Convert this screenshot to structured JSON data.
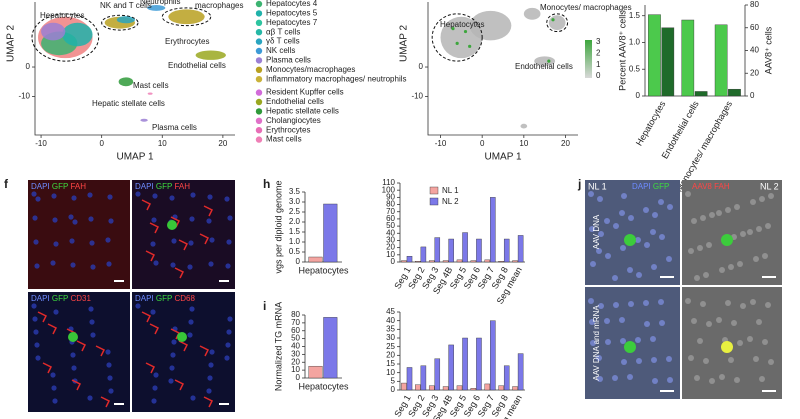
{
  "chart_data": [
    {
      "type": "scatter",
      "xlabel": "UMAP 1",
      "ylabel": "UMAP 2",
      "xlim": [
        -11,
        22
      ],
      "ylim": [
        -23,
        22
      ],
      "xticks": [
        -10,
        0,
        10,
        20
      ],
      "yticks": [
        -10,
        0
      ],
      "annotations": [
        "Hepatocytes",
        "NK and T cells",
        "Neutrophils",
        "macrophages",
        "Erythrocytes",
        "Endothelial cells",
        "Hepatic stellate cells",
        "Mast cells",
        "Plasma cells"
      ],
      "legend_entries": [
        {
          "name": "Hepatocytes 4",
          "color": "#3cb371"
        },
        {
          "name": "Hepatocytes 5",
          "color": "#20b2aa"
        },
        {
          "name": "Hepatocytes 7",
          "color": "#2ec4a0"
        },
        {
          "name": "αβ T cells",
          "color": "#26b8a6"
        },
        {
          "name": "γδ T cells",
          "color": "#2aa5c0"
        },
        {
          "name": "NK cells",
          "color": "#3c9ad6"
        },
        {
          "name": "Plasma cells",
          "color": "#9b7fd4"
        },
        {
          "name": "Monocytes/macrophages",
          "color": "#b8a020"
        },
        {
          "name": "Inflammatory macrophages/ neutrophils",
          "color": "#c9b23a"
        },
        {
          "name": "Resident Kupffer cells",
          "color": "#d26bd9"
        },
        {
          "name": "Endothelial cells",
          "color": "#9aa820"
        },
        {
          "name": "Hepatic stellate cells",
          "color": "#2f9a3a"
        },
        {
          "name": "Cholangiocytes",
          "color": "#e070c8"
        },
        {
          "name": "Erythrocytes",
          "color": "#e86db6"
        },
        {
          "name": "Mast cells",
          "color": "#ef7fb6"
        }
      ]
    },
    {
      "type": "scatter",
      "xlabel": "UMAP 1",
      "ylabel": "UMAP 2",
      "xlim": [
        -13,
        23
      ],
      "ylim": [
        -23,
        22
      ],
      "xticks": [
        -10,
        0,
        10,
        20
      ],
      "yticks": [
        -10,
        0
      ],
      "annotations": [
        "Hepatocytes",
        "Monocytes/ macrophages",
        "Endothelial cells"
      ],
      "colorbar_ticks": [
        0,
        1,
        2,
        3
      ],
      "color": "#b5b5b5"
    },
    {
      "type": "bar",
      "categories": [
        "Hepatocytes",
        "Endothelial cells",
        "Monocytes/ macrophages"
      ],
      "ylabel": "Percent AAV8⁺ cells",
      "y2label": "AAV8⁺ cells",
      "ylim": [
        0,
        1.7
      ],
      "yticks": [
        0,
        0.5,
        {
          "value": 1,
          "label": "1.0"
        },
        1.5
      ],
      "y2lim": [
        0,
        80
      ],
      "y2ticks": [
        0,
        20,
        40,
        60,
        80
      ],
      "series": [
        {
          "color": "#4cc94c",
          "values": [
            1.52,
            1.42,
            1.33
          ]
        },
        {
          "color": "#1f6b2a",
          "axis": "y2",
          "values": [
            60,
            4,
            6
          ]
        }
      ]
    },
    {
      "type": "bar",
      "categories": [
        "Hepatocytes"
      ],
      "ylabel": "vgs per diploid genome",
      "ylim": [
        0,
        3.5
      ],
      "yticks": [
        0,
        0.5,
        {
          "value": 1,
          "label": "1.0"
        },
        1.5,
        {
          "value": 2,
          "label": "2.0"
        },
        2.5,
        {
          "value": 3,
          "label": "3.0"
        },
        3.5
      ],
      "series": [
        {
          "color": "#f4a4a0",
          "values": [
            0.25
          ]
        },
        {
          "color": "#7b78e8",
          "values": [
            2.9
          ]
        }
      ]
    },
    {
      "type": "bar",
      "categories": [
        "Seg 1",
        "Seg 2",
        "Seg 3",
        "Seg 4B",
        "Seg 5",
        "Seg 6",
        "Seg 7",
        "Seg 8",
        "Seg mean"
      ],
      "ylim": [
        0,
        110
      ],
      "yticks": [
        0,
        10,
        20,
        30,
        40,
        50,
        60,
        70,
        80,
        90,
        100,
        110
      ],
      "series": [
        {
          "name": "NL 1",
          "color": "#f4a4a0",
          "values": [
            2,
            1,
            2,
            2,
            3,
            2,
            3,
            1,
            2
          ]
        },
        {
          "name": "NL 2",
          "color": "#7b78e8",
          "values": [
            8,
            21,
            34,
            32,
            41,
            32,
            90,
            32,
            37
          ]
        }
      ]
    },
    {
      "type": "bar",
      "categories": [
        "Hepatocytes"
      ],
      "ylabel": "Normalized TG mRNA",
      "ylim": [
        0,
        80
      ],
      "yticks": [
        0,
        10,
        20,
        30,
        40,
        50,
        60,
        70,
        80
      ],
      "series": [
        {
          "color": "#f4a4a0",
          "values": [
            15
          ]
        },
        {
          "color": "#7b78e8",
          "values": [
            77
          ]
        }
      ]
    },
    {
      "type": "bar",
      "categories": [
        "Seg 1",
        "Seg 2",
        "Seg 3",
        "Seg 4B",
        "Seg 5",
        "Seg 6",
        "Seg 7",
        "Seg 8",
        "Seg mean"
      ],
      "ylim": [
        0,
        45
      ],
      "yticks": [
        0,
        5,
        10,
        15,
        20,
        25,
        30,
        35,
        40,
        45
      ],
      "series": [
        {
          "color": "#f4a4a0",
          "values": [
            4,
            3,
            2.5,
            2,
            2.5,
            1,
            3.5,
            2.5,
            2
          ]
        },
        {
          "color": "#7b78e8",
          "values": [
            13,
            14,
            18,
            26,
            30,
            30,
            40,
            14,
            21
          ]
        }
      ]
    }
  ],
  "figure": {
    "panel_labels": [
      "f",
      "h",
      "i",
      "j"
    ],
    "f": {
      "labels": [
        [
          "DAPI",
          "GFP",
          "FAH"
        ],
        [
          "DAPI",
          "GFP",
          "FAH"
        ],
        [
          "DAPI",
          "GFP",
          "CD31"
        ],
        [
          "DAPI",
          "GFP",
          "CD68"
        ]
      ]
    },
    "j": {
      "left": "NL 1",
      "right": "NL 2",
      "stains": [
        [
          "DAPI",
          "GFP"
        ],
        [
          "AAV8",
          "FAH"
        ]
      ],
      "rows": [
        "AAV DNA",
        "AAV DNA and mRNA"
      ]
    }
  }
}
